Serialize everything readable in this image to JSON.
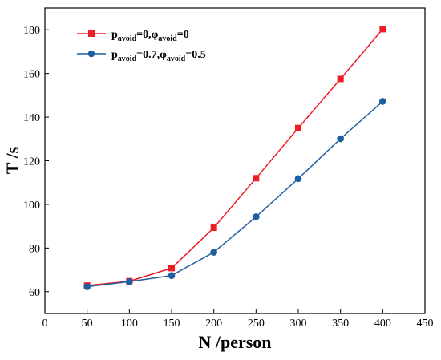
{
  "chart_data": {
    "type": "line",
    "xlabel": "N /person",
    "ylabel": "T /s",
    "xlim": [
      0,
      450
    ],
    "ylim": [
      50,
      190
    ],
    "xticks": [
      0,
      50,
      100,
      150,
      200,
      250,
      300,
      350,
      400,
      450
    ],
    "yticks": [
      60,
      80,
      100,
      120,
      140,
      160,
      180
    ],
    "grid": false,
    "legend_position": "top-left",
    "x": [
      50,
      100,
      150,
      200,
      250,
      300,
      350,
      400
    ],
    "series": [
      {
        "name": "p_avoid=0,φ_avoid=0",
        "legend": {
          "p": "p",
          "p_sub": "avoid",
          "p_val": "=0,",
          "phi": "φ",
          "phi_sub": "avoid",
          "phi_val": "=0"
        },
        "marker": "square",
        "color": "#ee1c25",
        "values": [
          62.8,
          64.8,
          70.8,
          89.3,
          112,
          135,
          157.5,
          180.3
        ]
      },
      {
        "name": "p_avoid=0.7,φ_avoid=0.5",
        "legend": {
          "p": "p",
          "p_sub": "avoid",
          "p_val": "=0.7,",
          "phi": "φ",
          "phi_sub": "avoid",
          "phi_val": "=0.5"
        },
        "marker": "circle",
        "color": "#1f5fa0",
        "values": [
          62.3,
          64.6,
          67.4,
          78.1,
          94.3,
          111.8,
          130.1,
          147.2
        ]
      }
    ]
  }
}
